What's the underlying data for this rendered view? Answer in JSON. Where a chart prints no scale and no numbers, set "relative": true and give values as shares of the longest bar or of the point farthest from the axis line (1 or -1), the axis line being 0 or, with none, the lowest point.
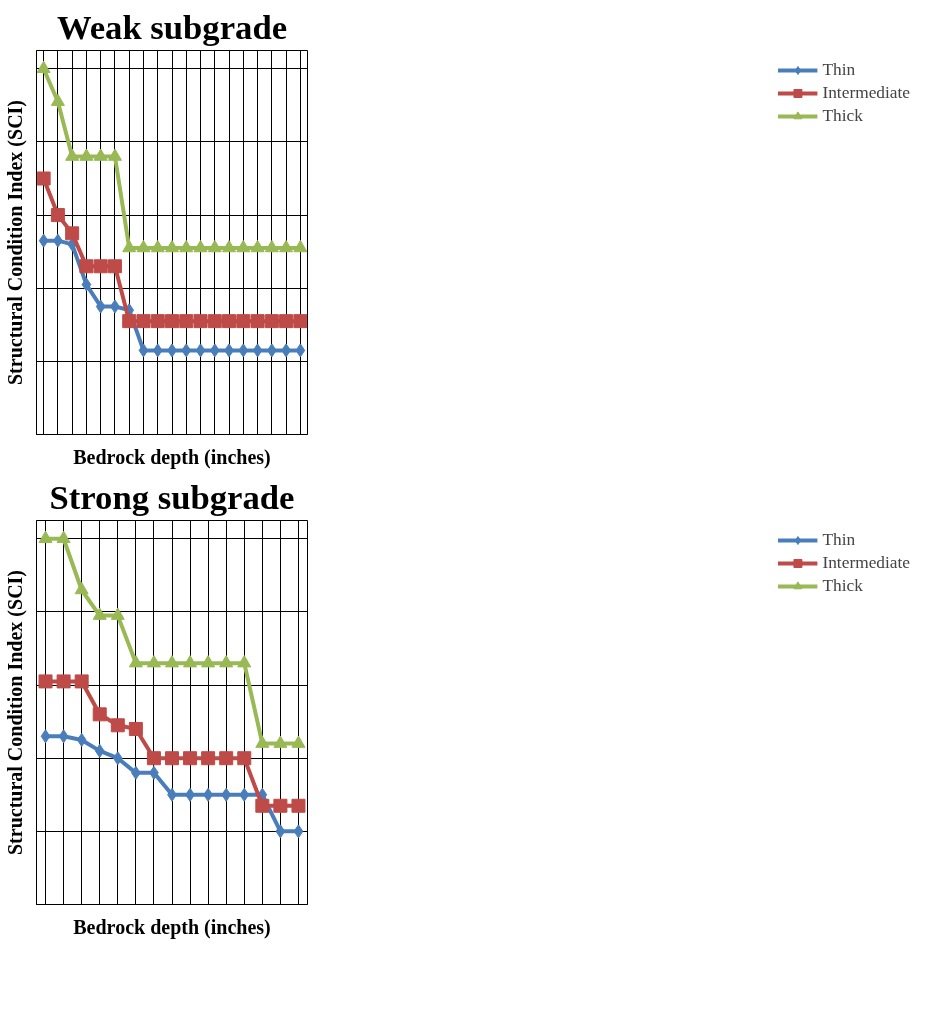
{
  "chart_data": [
    {
      "type": "line",
      "title": "Weak subgrade",
      "xlabel": "Bedrock depth (inches)",
      "ylabel": "Structural Condition Index (SCI)",
      "relative": true,
      "grid": true,
      "legend": "right",
      "tick_labels": false,
      "categories": [
        null,
        null,
        null,
        null,
        null,
        null,
        null,
        null,
        null,
        null,
        null,
        null,
        null,
        null,
        null,
        null,
        null,
        null,
        null
      ],
      "series": [
        {
          "name": "Thin",
          "color": "#4a7ebb",
          "marker": "diamond",
          "values": [
            0.53,
            0.53,
            0.52,
            0.41,
            0.35,
            0.35,
            0.34,
            0.23,
            0.23,
            0.23,
            0.23,
            0.23,
            0.23,
            0.23,
            0.23,
            0.23,
            0.23,
            0.23,
            0.23
          ]
        },
        {
          "name": "Intermediate",
          "color": "#be4b48",
          "marker": "square",
          "values": [
            0.7,
            0.6,
            0.55,
            0.46,
            0.46,
            0.46,
            0.31,
            0.31,
            0.31,
            0.31,
            0.31,
            0.31,
            0.31,
            0.31,
            0.31,
            0.31,
            0.31,
            0.31,
            0.31
          ]
        },
        {
          "name": "Thick",
          "color": "#98b954",
          "marker": "triangle",
          "values": [
            1,
            0.91,
            0.76,
            0.76,
            0.76,
            0.76,
            0.51,
            0.51,
            0.51,
            0.51,
            0.51,
            0.51,
            0.51,
            0.51,
            0.51,
            0.51,
            0.51,
            0.51,
            0.51
          ]
        }
      ]
    },
    {
      "type": "line",
      "title": "Strong subgrade",
      "xlabel": "Bedrock depth (inches)",
      "ylabel": "Structural Condition Index (SCI)",
      "relative": true,
      "grid": true,
      "legend": "right",
      "tick_labels": false,
      "categories": [
        null,
        null,
        null,
        null,
        null,
        null,
        null,
        null,
        null,
        null,
        null,
        null,
        null,
        null,
        null
      ],
      "series": [
        {
          "name": "Thin",
          "color": "#4a7ebb",
          "marker": "diamond",
          "values": [
            0.46,
            0.46,
            0.45,
            0.42,
            0.4,
            0.36,
            0.36,
            0.3,
            0.3,
            0.3,
            0.3,
            0.3,
            0.3,
            0.2,
            0.2
          ]
        },
        {
          "name": "Intermediate",
          "color": "#be4b48",
          "marker": "square",
          "values": [
            0.61,
            0.61,
            0.61,
            0.52,
            0.49,
            0.48,
            0.4,
            0.4,
            0.4,
            0.4,
            0.4,
            0.4,
            0.27,
            0.27,
            0.27
          ]
        },
        {
          "name": "Thick",
          "color": "#98b954",
          "marker": "triangle",
          "values": [
            1,
            1,
            0.86,
            0.79,
            0.79,
            0.66,
            0.66,
            0.66,
            0.66,
            0.66,
            0.66,
            0.66,
            0.44,
            0.44,
            0.44
          ]
        }
      ]
    }
  ]
}
